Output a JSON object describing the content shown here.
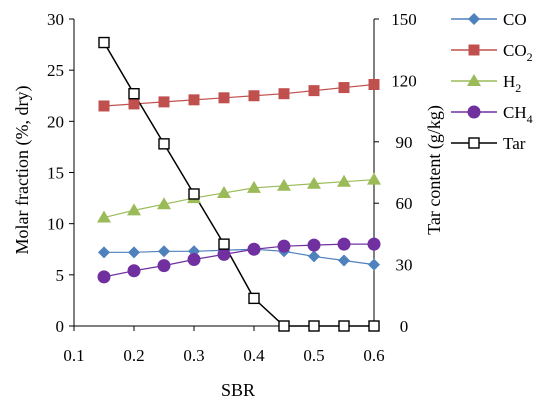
{
  "chart_data": {
    "type": "line",
    "xlabel": "SBR",
    "ylabel_left": "Molar fraction (%, dry)",
    "ylabel_right": "Tar content (g/kg)",
    "x_ticks": [
      "0.1",
      "0.2",
      "0.3",
      "0.4",
      "0.5",
      "0.6"
    ],
    "y_left_ticks": [
      "0",
      "5",
      "10",
      "15",
      "20",
      "25",
      "30"
    ],
    "y_right_ticks": [
      "0",
      "30",
      "60",
      "90",
      "120",
      "150"
    ],
    "xlim": [
      0.1,
      0.6
    ],
    "ylim_left": [
      0,
      30
    ],
    "ylim_right": [
      0,
      150
    ],
    "grid": false,
    "legend_position": "right",
    "x": [
      0.15,
      0.2,
      0.25,
      0.3,
      0.35,
      0.4,
      0.45,
      0.5,
      0.55,
      0.6
    ],
    "series": [
      {
        "name": "CO",
        "axis": "left",
        "marker": "diamond",
        "color": "#4F81BD",
        "values": [
          7.2,
          7.2,
          7.3,
          7.3,
          7.4,
          7.5,
          7.3,
          6.8,
          6.4,
          6.0
        ]
      },
      {
        "name": "CO2",
        "label_main": "CO",
        "label_sub": "2",
        "axis": "left",
        "marker": "square",
        "color": "#C0504D",
        "values": [
          21.5,
          21.7,
          21.9,
          22.1,
          22.3,
          22.5,
          22.7,
          23.0,
          23.3,
          23.6
        ]
      },
      {
        "name": "H2",
        "label_main": "H",
        "label_sub": "2",
        "axis": "left",
        "marker": "triangle",
        "color": "#9BBB59",
        "values": [
          10.6,
          11.3,
          11.9,
          12.5,
          13.0,
          13.5,
          13.7,
          13.9,
          14.1,
          14.3
        ]
      },
      {
        "name": "CH4",
        "label_main": "CH",
        "label_sub": "4",
        "axis": "left",
        "marker": "circle",
        "color": "#7030A0",
        "values": [
          4.8,
          5.4,
          5.9,
          6.5,
          7.0,
          7.5,
          7.8,
          7.9,
          8.0,
          8.0
        ]
      },
      {
        "name": "Tar",
        "axis": "right",
        "marker": "open-square",
        "color": "#000000",
        "values": [
          138.5,
          113.5,
          89.0,
          64.5,
          40.0,
          13.5,
          0,
          0,
          0,
          0
        ]
      }
    ]
  }
}
